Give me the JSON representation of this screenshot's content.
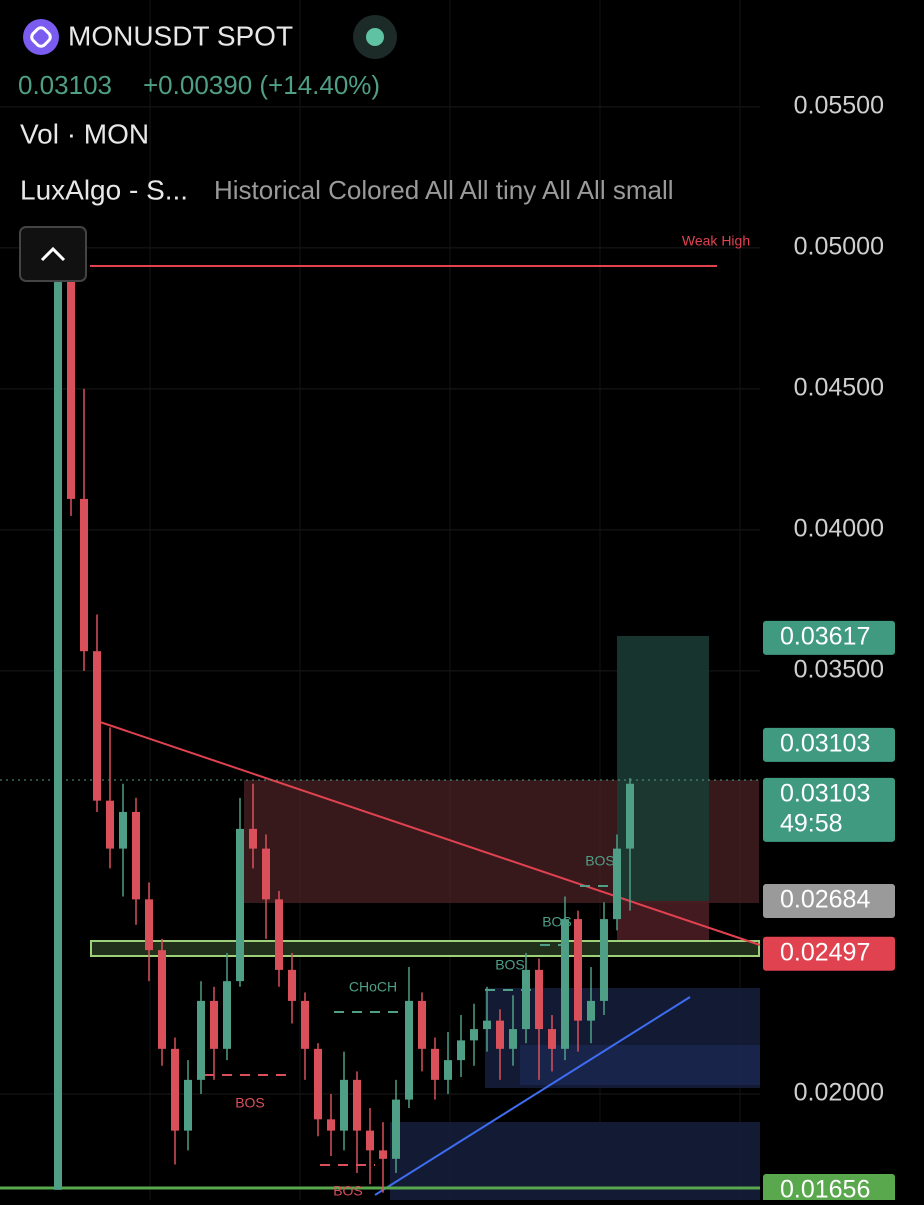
{
  "header": {
    "symbol": "MONUSDT SPOT",
    "price": "0.03103",
    "change": "+0.00390 (+14.40%)",
    "volume": "Vol · MON",
    "indicator": "LuxAlgo - S...",
    "indicator_settings": "Historical Colored All All tiny All All small"
  },
  "chart_data": {
    "type": "candlestick",
    "up_color": "#4f9e86",
    "down_color": "#d9505b",
    "open": [
      0.0166,
      0.0489,
      0.0411,
      0.0357,
      0.0304,
      0.0287,
      0.03,
      0.0269,
      0.0251,
      0.0216,
      0.0187,
      0.0205,
      0.0233,
      0.0216,
      0.024,
      0.0294,
      0.0287,
      0.0269,
      0.0244,
      0.0233,
      0.0216,
      0.0191,
      0.0187,
      0.0205,
      0.0187,
      0.018,
      0.0177,
      0.0198,
      0.0233,
      0.0216,
      0.0205,
      0.0212,
      0.0219,
      0.0223,
      0.0226,
      0.0216,
      0.0223,
      0.0244,
      0.0223,
      0.0216,
      0.0262,
      0.0226,
      0.0233,
      0.0262,
      0.0287
    ],
    "high": [
      0.0493,
      0.049,
      0.045,
      0.037,
      0.033,
      0.031,
      0.0305,
      0.0275,
      0.0255,
      0.022,
      0.0212,
      0.024,
      0.0238,
      0.025,
      0.0305,
      0.031,
      0.0292,
      0.0272,
      0.025,
      0.0236,
      0.0218,
      0.02,
      0.0215,
      0.0208,
      0.0195,
      0.019,
      0.0205,
      0.0245,
      0.0236,
      0.022,
      0.0222,
      0.0228,
      0.0232,
      0.0238,
      0.023,
      0.0235,
      0.025,
      0.0248,
      0.0228,
      0.027,
      0.0265,
      0.0245,
      0.0268,
      0.0292,
      0.0312
    ],
    "low": [
      0.0166,
      0.0405,
      0.035,
      0.03,
      0.028,
      0.027,
      0.026,
      0.024,
      0.021,
      0.0175,
      0.018,
      0.02,
      0.0205,
      0.0212,
      0.0238,
      0.028,
      0.0255,
      0.0238,
      0.0225,
      0.0205,
      0.0185,
      0.0178,
      0.018,
      0.0172,
      0.0168,
      0.0165,
      0.0172,
      0.0195,
      0.0208,
      0.0198,
      0.02,
      0.0206,
      0.021,
      0.0215,
      0.0205,
      0.021,
      0.0218,
      0.0205,
      0.0208,
      0.0212,
      0.0215,
      0.0218,
      0.0228,
      0.0258,
      0.0265
    ],
    "close": [
      0.0489,
      0.0411,
      0.0357,
      0.0304,
      0.0287,
      0.03,
      0.0269,
      0.0251,
      0.0216,
      0.0187,
      0.0205,
      0.0233,
      0.0216,
      0.024,
      0.0294,
      0.0287,
      0.0269,
      0.0244,
      0.0233,
      0.0216,
      0.0191,
      0.0187,
      0.0205,
      0.0187,
      0.018,
      0.0177,
      0.0198,
      0.0233,
      0.0216,
      0.0205,
      0.0212,
      0.0219,
      0.0223,
      0.0226,
      0.0216,
      0.0223,
      0.0244,
      0.0223,
      0.0216,
      0.0262,
      0.0226,
      0.0233,
      0.0262,
      0.0287,
      0.031
    ],
    "ylim": [
      0.01624,
      0.05879
    ],
    "yticks": [
      {
        "value": 0.055,
        "label": "0.05500"
      },
      {
        "value": 0.05,
        "label": "0.05000"
      },
      {
        "value": 0.045,
        "label": "0.04500"
      },
      {
        "value": 0.04,
        "label": "0.04000"
      },
      {
        "value": 0.035,
        "label": "0.03500"
      },
      {
        "value": 0.02,
        "label": "0.02000"
      }
    ],
    "grid": true,
    "price_tags": [
      {
        "value": 0.03617,
        "color": "#3f9a80"
      },
      {
        "value": 0.03103,
        "color": "#3f9a80"
      },
      {
        "value": 0.03103,
        "color": "#3f9a80",
        "countdown": "49:58"
      },
      {
        "value": 0.02684,
        "color": "#9a9a9a"
      },
      {
        "value": 0.02497,
        "color": "#e04250"
      },
      {
        "value": 0.01656,
        "color": "#5aa84e"
      }
    ],
    "annotations": {
      "weak_high": "Weak High",
      "bos": "BOS",
      "choch": "CHoCH"
    }
  }
}
